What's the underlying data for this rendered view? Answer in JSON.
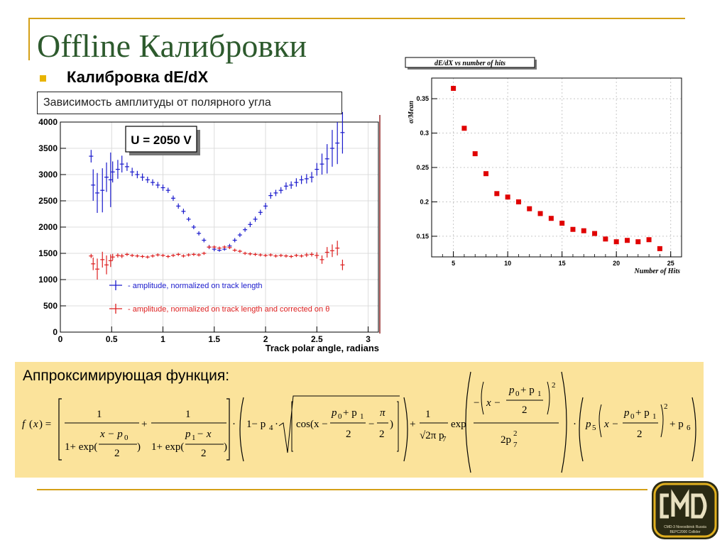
{
  "slide": {
    "title": "Offline Калибровки",
    "subtitle": "Калибровка dE/dX",
    "caption": "Зависимость амплитуды от полярного угла",
    "formula_title": "Аппроксимирующая функция:",
    "colors": {
      "title": "#2d5a2d",
      "accent_line": "#d4a017",
      "bullet": "#e8b400",
      "formula_bg": "#fbe39b"
    },
    "logo": {
      "text": "CMD-3 Novosibirsk Russia BEPC2000 Collider"
    }
  },
  "chart_data": [
    {
      "type": "scatter",
      "title": "",
      "xlabel": "Track polar angle, radians",
      "ylabel": "",
      "xlim": [
        0,
        3.1
      ],
      "ylim": [
        0,
        4000
      ],
      "x_ticks": [
        "0",
        "0.5",
        "1",
        "1.5",
        "2",
        "2.5",
        "3"
      ],
      "y_ticks": [
        "0",
        "500",
        "1000",
        "1500",
        "2000",
        "2500",
        "3000",
        "3500",
        "4000"
      ],
      "annotation": "U = 2050 V",
      "legend_position": "bottom-left",
      "grid": true,
      "series": [
        {
          "name": "- amplitude, normalized on track length",
          "color": "#1a1acc",
          "x": [
            0.3,
            0.32,
            0.36,
            0.41,
            0.45,
            0.49,
            0.51,
            0.56,
            0.6,
            0.65,
            0.7,
            0.75,
            0.8,
            0.85,
            0.9,
            0.95,
            1.0,
            1.05,
            1.1,
            1.15,
            1.2,
            1.25,
            1.3,
            1.35,
            1.4,
            1.45,
            1.5,
            1.55,
            1.6,
            1.65,
            1.7,
            1.75,
            1.8,
            1.85,
            1.9,
            1.95,
            2.0,
            2.05,
            2.1,
            2.15,
            2.2,
            2.25,
            2.3,
            2.35,
            2.4,
            2.45,
            2.5,
            2.55,
            2.6,
            2.65,
            2.7,
            2.75
          ],
          "y": [
            3350,
            2800,
            2650,
            2700,
            2950,
            2900,
            3050,
            3100,
            3200,
            3150,
            3050,
            3000,
            2950,
            2900,
            2850,
            2800,
            2750,
            2700,
            2550,
            2400,
            2300,
            2150,
            2000,
            1880,
            1750,
            1620,
            1580,
            1560,
            1580,
            1640,
            1750,
            1850,
            1950,
            2050,
            2150,
            2280,
            2400,
            2600,
            2650,
            2700,
            2780,
            2800,
            2850,
            2900,
            2920,
            2950,
            3100,
            3200,
            3300,
            3500,
            3600,
            3800
          ],
          "err": [
            120,
            300,
            380,
            420,
            280,
            520,
            200,
            180,
            160,
            80,
            80,
            70,
            70,
            60,
            60,
            60,
            60,
            50,
            50,
            50,
            50,
            40,
            40,
            40,
            40,
            40,
            40,
            30,
            30,
            40,
            40,
            40,
            40,
            50,
            50,
            50,
            60,
            60,
            60,
            60,
            70,
            70,
            80,
            80,
            90,
            100,
            120,
            200,
            280,
            350,
            400,
            400
          ]
        },
        {
          "name": "- amplitude, normalized on track length and corrected on θ",
          "color": "#dd2020",
          "x": [
            0.3,
            0.32,
            0.36,
            0.41,
            0.45,
            0.49,
            0.51,
            0.56,
            0.6,
            0.65,
            0.7,
            0.75,
            0.8,
            0.85,
            0.9,
            0.95,
            1.0,
            1.05,
            1.1,
            1.15,
            1.2,
            1.25,
            1.3,
            1.35,
            1.4,
            1.45,
            1.5,
            1.55,
            1.6,
            1.65,
            1.7,
            1.75,
            1.8,
            1.85,
            1.9,
            1.95,
            2.0,
            2.05,
            2.1,
            2.15,
            2.2,
            2.25,
            2.3,
            2.35,
            2.4,
            2.45,
            2.5,
            2.55,
            2.6,
            2.65,
            2.7,
            2.75
          ],
          "y": [
            1450,
            1300,
            1200,
            1380,
            1280,
            1360,
            1430,
            1460,
            1450,
            1480,
            1460,
            1450,
            1440,
            1430,
            1450,
            1470,
            1460,
            1440,
            1460,
            1480,
            1450,
            1470,
            1480,
            1470,
            1500,
            1620,
            1620,
            1600,
            1620,
            1610,
            1560,
            1540,
            1500,
            1490,
            1480,
            1470,
            1460,
            1470,
            1450,
            1460,
            1450,
            1440,
            1460,
            1450,
            1470,
            1480,
            1460,
            1380,
            1520,
            1550,
            1600,
            1280
          ],
          "err": [
            40,
            120,
            200,
            150,
            180,
            120,
            60,
            40,
            40,
            30,
            30,
            30,
            30,
            30,
            30,
            30,
            30,
            30,
            30,
            30,
            30,
            30,
            30,
            30,
            30,
            30,
            30,
            30,
            30,
            30,
            30,
            30,
            30,
            30,
            30,
            30,
            30,
            30,
            30,
            30,
            30,
            30,
            30,
            30,
            40,
            40,
            60,
            80,
            100,
            120,
            140,
            100
          ]
        }
      ]
    },
    {
      "type": "scatter",
      "title": "dE/dX vs number of hits",
      "xlabel": "Number of Hits",
      "ylabel": "σ/Mean",
      "xlim": [
        3,
        26
      ],
      "ylim": [
        0.12,
        0.38
      ],
      "x_ticks": [
        "5",
        "10",
        "15",
        "20",
        "25"
      ],
      "y_ticks": [
        "0.15",
        "0.2",
        "0.25",
        "0.3",
        "0.35"
      ],
      "grid": true,
      "series": [
        {
          "name": "",
          "color": "#e00000",
          "x": [
            5,
            6,
            7,
            8,
            9,
            10,
            11,
            12,
            13,
            14,
            15,
            16,
            17,
            18,
            19,
            20,
            21,
            22,
            23,
            24
          ],
          "y": [
            0.365,
            0.307,
            0.27,
            0.241,
            0.212,
            0.207,
            0.2,
            0.19,
            0.183,
            0.176,
            0.169,
            0.16,
            0.158,
            0.154,
            0.146,
            0.142,
            0.144,
            0.142,
            0.145,
            0.132
          ]
        }
      ]
    }
  ]
}
